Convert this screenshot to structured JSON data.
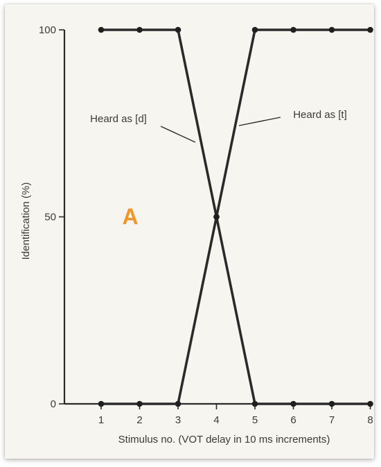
{
  "panel_label": "A",
  "colors": {
    "panel_label": "#f0962a",
    "ink": "#2a2a2a",
    "paper": "#f6f5f0"
  },
  "chart_data": {
    "type": "line",
    "title": "",
    "xlabel": "Stimulus no. (VOT delay in 10 ms increments)",
    "ylabel": "Identification (%)",
    "x": [
      1,
      2,
      3,
      4,
      5,
      6,
      7,
      8
    ],
    "x_ticks": [
      "1",
      "2",
      "3",
      "4",
      "5",
      "6",
      "7",
      "8"
    ],
    "y_ticks": [
      "0",
      "50",
      "100"
    ],
    "xlim": [
      0,
      8
    ],
    "ylim": [
      0,
      100
    ],
    "grid": false,
    "series": [
      {
        "name": "Heard as [d]",
        "values": [
          100,
          100,
          100,
          50,
          0,
          0,
          0,
          0
        ]
      },
      {
        "name": "Heard as [t]",
        "values": [
          0,
          0,
          0,
          50,
          100,
          100,
          100,
          100
        ]
      }
    ]
  }
}
